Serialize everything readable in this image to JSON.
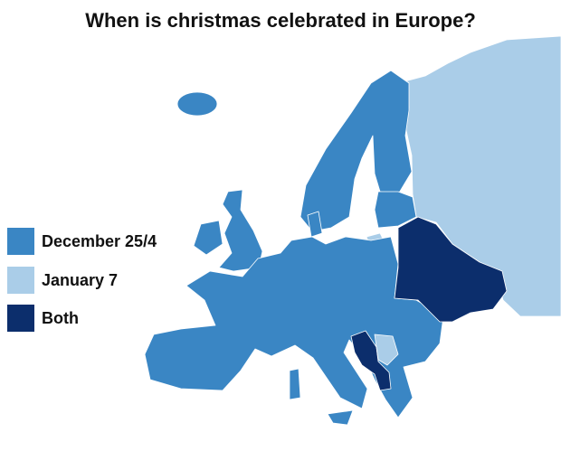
{
  "title": "When is christmas celebrated in Europe?",
  "legend": [
    {
      "label": "December 25/4",
      "color": "#3a86c4"
    },
    {
      "label": "January 7",
      "color": "#aacde8"
    },
    {
      "label": "Both",
      "color": "#0c2e6c"
    }
  ]
}
